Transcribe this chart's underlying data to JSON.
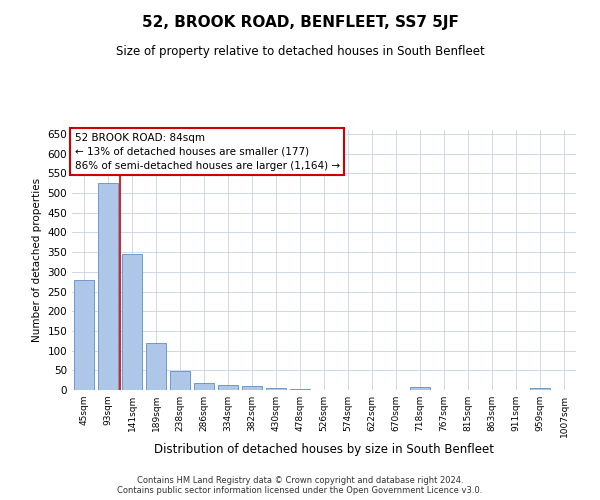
{
  "title": "52, BROOK ROAD, BENFLEET, SS7 5JF",
  "subtitle": "Size of property relative to detached houses in South Benfleet",
  "xlabel": "Distribution of detached houses by size in South Benfleet",
  "ylabel": "Number of detached properties",
  "footer_line1": "Contains HM Land Registry data © Crown copyright and database right 2024.",
  "footer_line2": "Contains public sector information licensed under the Open Government Licence v3.0.",
  "annotation_title": "52 BROOK ROAD: 84sqm",
  "annotation_line1": "← 13% of detached houses are smaller (177)",
  "annotation_line2": "86% of semi-detached houses are larger (1,164) →",
  "bar_labels": [
    "45sqm",
    "93sqm",
    "141sqm",
    "189sqm",
    "238sqm",
    "286sqm",
    "334sqm",
    "382sqm",
    "430sqm",
    "478sqm",
    "526sqm",
    "574sqm",
    "622sqm",
    "670sqm",
    "718sqm",
    "767sqm",
    "815sqm",
    "863sqm",
    "911sqm",
    "959sqm",
    "1007sqm"
  ],
  "bar_values": [
    280,
    525,
    345,
    120,
    48,
    17,
    12,
    10,
    6,
    3,
    0,
    0,
    0,
    0,
    7,
    0,
    0,
    0,
    0,
    5,
    0
  ],
  "bar_color": "#aec6e8",
  "bar_edge_color": "#5b8fc9",
  "vline_x": 1.5,
  "ylim": [
    0,
    660
  ],
  "yticks": [
    0,
    50,
    100,
    150,
    200,
    250,
    300,
    350,
    400,
    450,
    500,
    550,
    600,
    650
  ],
  "bg_color": "#ffffff",
  "grid_color": "#d0d8e8",
  "annotation_box_color": "#ffffff",
  "annotation_box_edge_color": "#cc0000",
  "vline_color": "#cc0000",
  "title_fontsize": 11,
  "subtitle_fontsize": 8.5,
  "ylabel_fontsize": 7.5,
  "xlabel_fontsize": 8.5,
  "ytick_fontsize": 7.5,
  "xtick_fontsize": 6.5,
  "annotation_fontsize": 7.5,
  "footer_fontsize": 6.0
}
